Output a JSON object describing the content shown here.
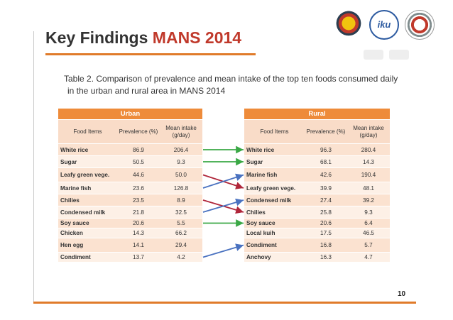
{
  "slide": {
    "title_main": "Key Findings",
    "title_accent": "MANS 2014",
    "caption_line1": "Table 2. Comparison of prevalence and mean intake of the top ten foods consumed daily",
    "caption_line2": "in the urban and rural area in MANS 2014",
    "page_number": "10",
    "logos": [
      "Malaysia coat of arms",
      "iku",
      "heart emblem"
    ],
    "logo_text_iku": "iku"
  },
  "urban": {
    "heading": "Urban",
    "col_item": "Food Items",
    "col_prev": "Prevalence (%)",
    "col_mean": "Mean intake (g/day)",
    "rows": [
      {
        "item": "White rice",
        "prev": "86.9",
        "mean": "206.4"
      },
      {
        "item": "Sugar",
        "prev": "50.5",
        "mean": "9.3"
      },
      {
        "item": "Leafy green vege.",
        "prev": "44.6",
        "mean": "50.0"
      },
      {
        "item": "Marine fish",
        "prev": "23.6",
        "mean": "126.8"
      },
      {
        "item": "Chilies",
        "prev": "23.5",
        "mean": "8.9"
      },
      {
        "item": "Condensed milk",
        "prev": "21.8",
        "mean": "32.5"
      },
      {
        "item": "Soy sauce",
        "prev": "20.6",
        "mean": "5.5"
      },
      {
        "item": "Chicken",
        "prev": "14.3",
        "mean": "66.2"
      },
      {
        "item": "Hen egg",
        "prev": "14.1",
        "mean": "29.4"
      },
      {
        "item": "Condiment",
        "prev": "13.7",
        "mean": "4.2"
      }
    ]
  },
  "rural": {
    "heading": "Rural",
    "col_item": "Food Items",
    "col_prev": "Prevalence (%)",
    "col_mean": "Mean intake (g/day)",
    "rows": [
      {
        "item": "White rice",
        "prev": "96.3",
        "mean": "280.4"
      },
      {
        "item": "Sugar",
        "prev": "68.1",
        "mean": "14.3"
      },
      {
        "item": "Marine fish",
        "prev": "42.6",
        "mean": "190.4"
      },
      {
        "item": "Leafy green vege.",
        "prev": "39.9",
        "mean": "48.1"
      },
      {
        "item": "Condensed milk",
        "prev": "27.4",
        "mean": "39.2"
      },
      {
        "item": "Chilies",
        "prev": "25.8",
        "mean": "9.3"
      },
      {
        "item": "Soy sauce",
        "prev": "20.6",
        "mean": "6.4"
      },
      {
        "item": "Local kuih",
        "prev": "17.5",
        "mean": "46.5"
      },
      {
        "item": "Condiment",
        "prev": "16.8",
        "mean": "5.7"
      },
      {
        "item": "Anchovy",
        "prev": "16.3",
        "mean": "4.7"
      }
    ]
  },
  "rank_arrows": [
    {
      "food": "White rice",
      "from_rank": 1,
      "to_rank": 1,
      "color": "#3aa845"
    },
    {
      "food": "Sugar",
      "from_rank": 2,
      "to_rank": 2,
      "color": "#3aa845"
    },
    {
      "food": "Leafy green vege.",
      "from_rank": 3,
      "to_rank": 4,
      "color": "#b0263a"
    },
    {
      "food": "Marine fish",
      "from_rank": 4,
      "to_rank": 3,
      "color": "#4a72c0"
    },
    {
      "food": "Chilies",
      "from_rank": 5,
      "to_rank": 6,
      "color": "#b0263a"
    },
    {
      "food": "Condensed milk",
      "from_rank": 6,
      "to_rank": 5,
      "color": "#4a72c0"
    },
    {
      "food": "Soy sauce",
      "from_rank": 7,
      "to_rank": 7,
      "color": "#3aa845"
    },
    {
      "food": "Condiment",
      "from_rank": 10,
      "to_rank": 9,
      "color": "#4a72c0"
    }
  ],
  "colors": {
    "accent": "#c0392b",
    "table_header": "#ee8b3a",
    "table_subheader": "#f9dcc8",
    "row_odd": "#fbe2d0",
    "row_even": "#fdf0e6",
    "rule": "#e07b2a"
  }
}
